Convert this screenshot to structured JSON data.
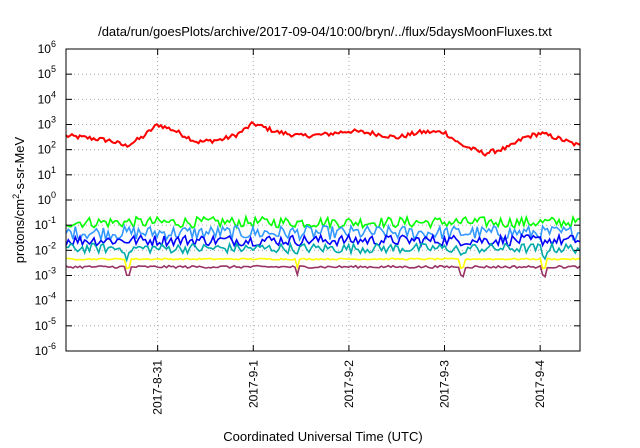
{
  "chart_data": {
    "type": "line",
    "title": "/data/run/goesPlots/archive/2017-09-04/10:00/bryn/../flux/5daysMoonFluxes.txt",
    "xlabel": "Coordinated Universal Time (UTC)",
    "ylabel_parts": [
      "protons/cm",
      "2",
      "-s-sr-MeV"
    ],
    "y_scale": "log",
    "ylim": [
      1e-06,
      1000000.0
    ],
    "y_ticks": [
      {
        "exp": "-6",
        "value": 1e-06
      },
      {
        "exp": "-5",
        "value": 1e-05
      },
      {
        "exp": "-4",
        "value": 0.0001
      },
      {
        "exp": "-3",
        "value": 0.001
      },
      {
        "exp": "-2",
        "value": 0.01
      },
      {
        "exp": "-1",
        "value": 0.1
      },
      {
        "exp": "0",
        "value": 1
      },
      {
        "exp": "1",
        "value": 10
      },
      {
        "exp": "2",
        "value": 100
      },
      {
        "exp": "3",
        "value": 1000
      },
      {
        "exp": "4",
        "value": 10000
      },
      {
        "exp": "5",
        "value": 100000
      },
      {
        "exp": "6",
        "value": 1000000
      }
    ],
    "y_tick_base": "10",
    "x_range_days": [
      "2017-08-30 01:00",
      "2017-09-04 10:00"
    ],
    "x_ticks": [
      "2017-8-31",
      "2017-9-1",
      "2017-9-2",
      "2017-9-3",
      "2017-9-4"
    ],
    "grid": true,
    "legend": "none",
    "series": [
      {
        "color": "#ff0000",
        "values_by_day": [
          [
            "2017-08-30 01:00",
            350
          ],
          [
            "2017-08-30 06:00",
            300
          ],
          [
            "2017-08-30 12:00",
            230
          ],
          [
            "2017-08-30 16:00",
            140
          ],
          [
            "2017-08-30 20:00",
            300
          ],
          [
            "2017-08-31 00:00",
            1000
          ],
          [
            "2017-08-31 04:00",
            600
          ],
          [
            "2017-08-31 10:00",
            200
          ],
          [
            "2017-08-31 16:00",
            250
          ],
          [
            "2017-08-31 20:00",
            400
          ],
          [
            "2017-09-01 00:00",
            1100
          ],
          [
            "2017-09-01 06:00",
            500
          ],
          [
            "2017-09-01 12:00",
            350
          ],
          [
            "2017-09-01 18:00",
            400
          ],
          [
            "2017-09-02 00:00",
            550
          ],
          [
            "2017-09-02 06:00",
            450
          ],
          [
            "2017-09-02 12:00",
            300
          ],
          [
            "2017-09-02 18:00",
            500
          ],
          [
            "2017-09-03 00:00",
            500
          ],
          [
            "2017-09-03 04:00",
            160
          ],
          [
            "2017-09-03 10:00",
            70
          ],
          [
            "2017-09-03 16:00",
            120
          ],
          [
            "2017-09-03 20:00",
            300
          ],
          [
            "2017-09-04 00:00",
            450
          ],
          [
            "2017-09-04 04:00",
            300
          ],
          [
            "2017-09-04 10:00",
            140
          ]
        ]
      },
      {
        "color": "#00ff00",
        "typical": 0.13
      },
      {
        "color": "#3399ff",
        "typical": 0.05
      },
      {
        "color": "#0000ff",
        "typical": 0.025
      },
      {
        "color": "#00aaaa",
        "typical": 0.012
      },
      {
        "color": "#ffff00",
        "typical": 0.0045
      },
      {
        "color": "#993366",
        "typical": 0.0022
      }
    ]
  }
}
